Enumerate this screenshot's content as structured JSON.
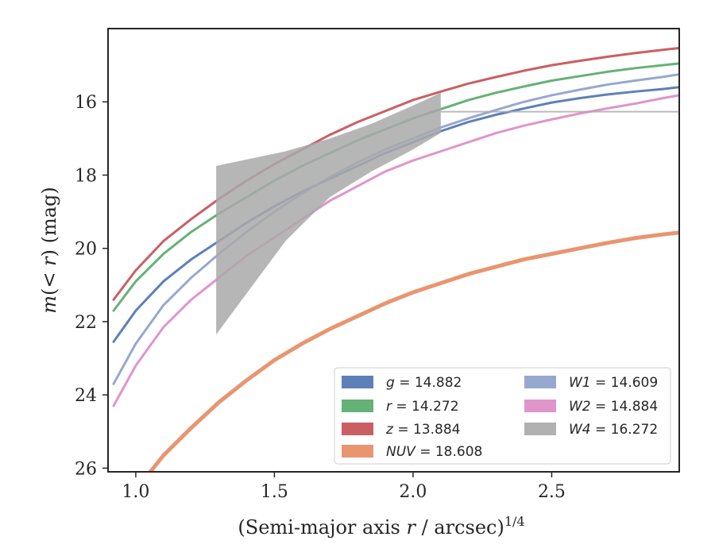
{
  "chart_data": {
    "type": "line",
    "xlabel_main": "(Semi-major axis ",
    "xlabel_var": "r",
    "xlabel_rest": " / arcsec)",
    "xlabel_sup": "1/4",
    "ylabel_m": "m",
    "ylabel_mid": "(< ",
    "ylabel_r": "r",
    "ylabel_rest": ") (mag)",
    "xlim": [
      0.9,
      2.96
    ],
    "ylim": [
      26.1,
      14.0
    ],
    "y_inverted": true,
    "x_ticks": [
      1.0,
      1.5,
      2.0,
      2.5
    ],
    "x_tick_labels": [
      "1.0",
      "1.5",
      "2.0",
      "2.5"
    ],
    "y_ticks": [
      16,
      18,
      20,
      22,
      24,
      26
    ],
    "y_tick_labels": [
      "16",
      "18",
      "20",
      "22",
      "24",
      "26"
    ],
    "grid": false,
    "legend_position": "lower-right",
    "series": [
      {
        "name": "g = 14.882",
        "color": "#4c72b0",
        "x": [
          0.92,
          1.0,
          1.1,
          1.2,
          1.3,
          1.4,
          1.5,
          1.6,
          1.7,
          1.8,
          1.9,
          2.0,
          2.1,
          2.2,
          2.3,
          2.4,
          2.5,
          2.6,
          2.7,
          2.8,
          2.9,
          2.96
        ],
        "y": [
          22.55,
          21.7,
          20.9,
          20.3,
          19.8,
          19.3,
          18.85,
          18.45,
          18.1,
          17.75,
          17.4,
          17.1,
          16.8,
          16.55,
          16.35,
          16.18,
          16.02,
          15.9,
          15.8,
          15.72,
          15.65,
          15.6
        ]
      },
      {
        "name": "r = 14.272",
        "color": "#55a868",
        "x": [
          0.92,
          1.0,
          1.1,
          1.2,
          1.3,
          1.4,
          1.5,
          1.6,
          1.7,
          1.8,
          1.9,
          2.0,
          2.1,
          2.2,
          2.3,
          2.4,
          2.5,
          2.6,
          2.7,
          2.8,
          2.9,
          2.96
        ],
        "y": [
          21.7,
          20.9,
          20.15,
          19.55,
          19.05,
          18.6,
          18.15,
          17.75,
          17.4,
          17.05,
          16.75,
          16.45,
          16.2,
          15.95,
          15.75,
          15.58,
          15.42,
          15.3,
          15.18,
          15.08,
          15.0,
          14.95
        ]
      },
      {
        "name": "z = 13.884",
        "color": "#c44e52",
        "x": [
          0.92,
          1.0,
          1.1,
          1.2,
          1.3,
          1.4,
          1.5,
          1.6,
          1.7,
          1.8,
          1.9,
          2.0,
          2.1,
          2.2,
          2.3,
          2.4,
          2.5,
          2.6,
          2.7,
          2.8,
          2.9,
          2.96
        ],
        "y": [
          21.4,
          20.6,
          19.8,
          19.2,
          18.65,
          18.15,
          17.7,
          17.3,
          16.9,
          16.55,
          16.25,
          15.95,
          15.72,
          15.5,
          15.32,
          15.15,
          15.0,
          14.88,
          14.77,
          14.67,
          14.58,
          14.53
        ]
      },
      {
        "name": "NUV = 18.608",
        "color": "#e58a60",
        "x": [
          1.0,
          1.1,
          1.2,
          1.3,
          1.4,
          1.5,
          1.6,
          1.7,
          1.8,
          1.9,
          2.0,
          2.1,
          2.2,
          2.3,
          2.4,
          2.5,
          2.6,
          2.7,
          2.8,
          2.9,
          2.96
        ],
        "y": [
          26.6,
          25.65,
          24.9,
          24.2,
          23.6,
          23.05,
          22.6,
          22.2,
          21.85,
          21.5,
          21.2,
          20.95,
          20.7,
          20.5,
          20.3,
          20.15,
          20.0,
          19.85,
          19.72,
          19.62,
          19.57
        ]
      },
      {
        "name": "W1 = 14.609",
        "color": "#8c9fca",
        "x": [
          0.92,
          1.0,
          1.1,
          1.2,
          1.3,
          1.4,
          1.5,
          1.6,
          1.7,
          1.8,
          1.9,
          2.0,
          2.1,
          2.2,
          2.3,
          2.4,
          2.5,
          2.6,
          2.7,
          2.8,
          2.9,
          2.96
        ],
        "y": [
          23.7,
          22.6,
          21.55,
          20.8,
          20.15,
          19.55,
          19.0,
          18.5,
          18.05,
          17.65,
          17.3,
          17.0,
          16.7,
          16.45,
          16.22,
          16.0,
          15.82,
          15.67,
          15.53,
          15.42,
          15.32,
          15.25
        ]
      },
      {
        "name": "W2 = 14.884",
        "color": "#dd8ac4",
        "x": [
          0.92,
          1.0,
          1.1,
          1.2,
          1.3,
          1.4,
          1.5,
          1.6,
          1.7,
          1.8,
          1.9,
          2.0,
          2.1,
          2.2,
          2.3,
          2.4,
          2.5,
          2.6,
          2.7,
          2.8,
          2.9,
          2.96
        ],
        "y": [
          24.3,
          23.2,
          22.15,
          21.4,
          20.8,
          20.2,
          19.7,
          19.2,
          18.7,
          18.3,
          17.9,
          17.6,
          17.35,
          17.1,
          16.85,
          16.65,
          16.48,
          16.32,
          16.18,
          16.05,
          15.9,
          15.82
        ]
      },
      {
        "name": "W4 = 16.272",
        "color": "#a9a9a9",
        "band": true,
        "x_band": [
          1.29,
          1.54,
          1.7,
          1.85,
          2.0,
          2.1
        ],
        "y_upper": [
          17.75,
          17.35,
          17.0,
          16.6,
          16.1,
          15.75
        ],
        "y_lower": [
          22.35,
          19.8,
          18.6,
          17.9,
          17.3,
          16.85
        ],
        "x_line": [
          2.1,
          2.96
        ],
        "y_line": [
          16.27,
          16.27
        ]
      }
    ]
  }
}
